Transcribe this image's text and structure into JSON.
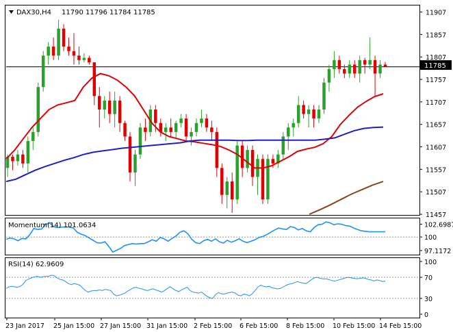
{
  "main": {
    "symbol": "DAX30,H4",
    "ohlc": "11790 11796 11784 11785",
    "current_price_label": "11785",
    "ylim": [
      11457,
      11920
    ],
    "y_ticks": [
      "11907",
      "11857",
      "11807",
      "11757",
      "11707",
      "11657",
      "11607",
      "11557",
      "11507",
      "11457"
    ]
  },
  "momentum": {
    "label": "Momentum(14) 101.0634",
    "ylim": [
      96.4,
      103.8
    ],
    "y_ticks": [
      "102.6987",
      "100",
      "97.1172"
    ]
  },
  "rsi": {
    "label": "RSI(14) 62.9609",
    "ylim": [
      0,
      100
    ],
    "y_ticks": [
      "100",
      "70",
      "30",
      "0"
    ],
    "levels": [
      70,
      30
    ]
  },
  "x_ticks": [
    "23 Jan 2017",
    "25 Jan 15:00",
    "27 Jan 15:00",
    "31 Jan 15:00",
    "2 Feb 15:00",
    "6 Feb 15:00",
    "8 Feb 15:00",
    "10 Feb 15:00",
    "14 Feb 15:00"
  ],
  "colors": {
    "bull": "#2ca02c",
    "bear": "#e00000",
    "sma_fast": "#e00000",
    "sma_mid": "#1e1ec8",
    "sma_slow": "#8b4513",
    "indicator": "#1e90ff"
  },
  "chart_data": {
    "type": "candlestick",
    "series": [
      {
        "name": "DAX30,H4",
        "values": [
          [
            11560,
            11590,
            11540,
            11585
          ],
          [
            11585,
            11590,
            11555,
            11575
          ],
          [
            11575,
            11600,
            11565,
            11590
          ],
          [
            11590,
            11600,
            11560,
            11570
          ],
          [
            11570,
            11630,
            11550,
            11620
          ],
          [
            11620,
            11650,
            11600,
            11640
          ],
          [
            11640,
            11750,
            11630,
            11740
          ],
          [
            11740,
            11820,
            11730,
            11810
          ],
          [
            11810,
            11840,
            11790,
            11830
          ],
          [
            11830,
            11850,
            11800,
            11810
          ],
          [
            11810,
            11890,
            11800,
            11870
          ],
          [
            11870,
            11880,
            11820,
            11830
          ],
          [
            11830,
            11850,
            11810,
            11820
          ],
          [
            11820,
            11860,
            11790,
            11810
          ],
          [
            11810,
            11830,
            11790,
            11800
          ],
          [
            11800,
            11815,
            11795,
            11805
          ],
          [
            11805,
            11810,
            11790,
            11795
          ],
          [
            11795,
            11780,
            11700,
            11720
          ],
          [
            11720,
            11740,
            11650,
            11690
          ],
          [
            11690,
            11720,
            11670,
            11710
          ],
          [
            11710,
            11730,
            11660,
            11680
          ],
          [
            11680,
            11730,
            11650,
            11710
          ],
          [
            11710,
            11720,
            11640,
            11660
          ],
          [
            11660,
            11665,
            11620,
            11630
          ],
          [
            11630,
            11640,
            11530,
            11550
          ],
          [
            11550,
            11600,
            11520,
            11590
          ],
          [
            11590,
            11660,
            11580,
            11650
          ],
          [
            11650,
            11670,
            11620,
            11640
          ],
          [
            11640,
            11700,
            11630,
            11690
          ],
          [
            11690,
            11700,
            11640,
            11660
          ],
          [
            11660,
            11670,
            11630,
            11640
          ],
          [
            11640,
            11660,
            11620,
            11650
          ],
          [
            11650,
            11670,
            11630,
            11640
          ],
          [
            11640,
            11665,
            11625,
            11660
          ],
          [
            11660,
            11680,
            11650,
            11670
          ],
          [
            11670,
            11680,
            11620,
            11630
          ],
          [
            11630,
            11650,
            11610,
            11640
          ],
          [
            11640,
            11670,
            11630,
            11660
          ],
          [
            11660,
            11690,
            11650,
            11670
          ],
          [
            11670,
            11680,
            11640,
            11650
          ],
          [
            11650,
            11665,
            11620,
            11640
          ],
          [
            11640,
            11650,
            11540,
            11560
          ],
          [
            11560,
            11570,
            11480,
            11500
          ],
          [
            11500,
            11540,
            11470,
            11530
          ],
          [
            11530,
            11550,
            11460,
            11490
          ],
          [
            11490,
            11620,
            11480,
            11610
          ],
          [
            11610,
            11620,
            11540,
            11560
          ],
          [
            11560,
            11610,
            11550,
            11600
          ],
          [
            11600,
            11610,
            11520,
            11540
          ],
          [
            11540,
            11590,
            11500,
            11580
          ],
          [
            11580,
            11590,
            11480,
            11490
          ],
          [
            11490,
            11590,
            11480,
            11580
          ],
          [
            11580,
            11590,
            11560,
            11570
          ],
          [
            11570,
            11600,
            11560,
            11590
          ],
          [
            11590,
            11640,
            11580,
            11630
          ],
          [
            11630,
            11660,
            11600,
            11650
          ],
          [
            11650,
            11670,
            11630,
            11660
          ],
          [
            11660,
            11720,
            11650,
            11700
          ],
          [
            11700,
            11710,
            11670,
            11680
          ],
          [
            11680,
            11700,
            11650,
            11690
          ],
          [
            11690,
            11700,
            11650,
            11670
          ],
          [
            11670,
            11700,
            11660,
            11690
          ],
          [
            11690,
            11760,
            11680,
            11750
          ],
          [
            11750,
            11790,
            11730,
            11780
          ],
          [
            11780,
            11820,
            11760,
            11800
          ],
          [
            11800,
            11810,
            11770,
            11780
          ],
          [
            11780,
            11790,
            11760,
            11770
          ],
          [
            11770,
            11800,
            11760,
            11790
          ],
          [
            11790,
            11800,
            11760,
            11770
          ],
          [
            11770,
            11810,
            11750,
            11800
          ],
          [
            11800,
            11805,
            11770,
            11790
          ],
          [
            11790,
            11850,
            11780,
            11800
          ],
          [
            11800,
            11810,
            11720,
            11770
          ],
          [
            11770,
            11800,
            11760,
            11790
          ],
          [
            11790,
            11796,
            11784,
            11785
          ]
        ]
      },
      {
        "name": "SMA fast",
        "values": [
          11580,
          11600,
          11625,
          11650,
          11670,
          11690,
          11700,
          11705,
          11710,
          11740,
          11760,
          11770,
          11765,
          11755,
          11740,
          11720,
          11690,
          11660,
          11640,
          11630,
          11625,
          11620,
          11618,
          11615,
          11612,
          11608,
          11600,
          11590,
          11575,
          11560,
          11560,
          11565,
          11575,
          11585,
          11597,
          11602,
          11606,
          11614,
          11630,
          11657,
          11677,
          11695,
          11708,
          11719,
          11725
        ]
      },
      {
        "name": "SMA mid",
        "values": [
          11530,
          11535,
          11545,
          11555,
          11563,
          11570,
          11577,
          11583,
          11590,
          11595,
          11598,
          11601,
          11604,
          11606,
          11608,
          11610,
          11612,
          11614,
          11616,
          11620,
          11622,
          11622,
          11622,
          11622,
          11621,
          11621,
          11622,
          11622,
          11622,
          11622,
          11622,
          11622,
          11622,
          11624,
          11627,
          11635,
          11643,
          11648,
          11650,
          11651
        ]
      },
      {
        "name": "SMA slow",
        "values": [
          11457,
          11467,
          11478,
          11490,
          11502,
          11512,
          11522,
          11530
        ]
      }
    ],
    "momentum": [
      99.5,
      99.8,
      99.6,
      99.2,
      99.7,
      99.6,
      100.5,
      101.8,
      101.6,
      101.7,
      102.7,
      103.0,
      102.2,
      102.0,
      102.1,
      102.1,
      102.1,
      101.9,
      101.0,
      100.6,
      100.3,
      99.8,
      99.3,
      98.8,
      98.7,
      99.0,
      98.0,
      96.8,
      97.2,
      97.6,
      98.2,
      98.4,
      98.6,
      98.5,
      98.6,
      98.6,
      99.0,
      99.4,
      99.1,
      99.9,
      99.6,
      99.1,
      99.7,
      100.2,
      101.0,
      101.3,
      100.7,
      99.5,
      98.8,
      98.6,
      99.2,
      99.5,
      99.1,
      99.6,
      99.0,
      98.7,
      99.3,
      98.9,
      99.2,
      99.6,
      99.1,
      98.8,
      99.1,
      99.4,
      99.9,
      100.1,
      100.5,
      101.0,
      101.5,
      101.9,
      101.7,
      101.6,
      102.2,
      102.0,
      101.5,
      101.8,
      101.3,
      101.1,
      102.0,
      102.6,
      102.7,
      103.2,
      103.0,
      102.6,
      102.8,
      102.7,
      102.4,
      102.3,
      101.9,
      101.6,
      101.3,
      101.2,
      101.1,
      101.1,
      101.1,
      101.1,
      101.1
    ],
    "rsi": [
      49,
      52,
      53,
      52,
      51,
      53,
      57,
      64,
      67,
      69,
      71,
      72,
      70,
      71,
      72,
      72,
      74,
      73,
      69,
      66,
      65,
      62,
      58,
      56,
      58,
      57,
      55,
      50,
      45,
      42,
      44,
      45,
      45,
      46,
      45,
      47,
      46,
      45,
      38,
      35,
      36,
      38,
      40,
      44,
      47,
      50,
      51,
      49,
      48,
      46,
      45,
      47,
      48,
      46,
      44,
      42,
      45,
      49,
      52,
      48,
      45,
      43,
      46,
      49,
      51,
      45,
      42,
      41,
      40,
      42,
      38,
      34,
      31,
      30,
      37,
      41,
      39,
      38,
      40,
      41,
      42,
      40,
      36,
      35,
      38,
      37,
      35,
      39,
      45,
      52,
      55,
      53,
      52,
      53,
      50,
      49,
      48,
      49,
      52,
      55,
      57,
      58,
      60,
      62,
      60,
      59,
      58,
      62,
      66,
      69,
      70,
      68,
      67,
      67,
      66,
      64,
      63,
      64,
      66,
      67,
      69,
      70,
      69,
      68,
      67,
      68,
      69,
      68,
      66,
      65,
      63,
      65,
      64,
      62,
      63
    ]
  }
}
